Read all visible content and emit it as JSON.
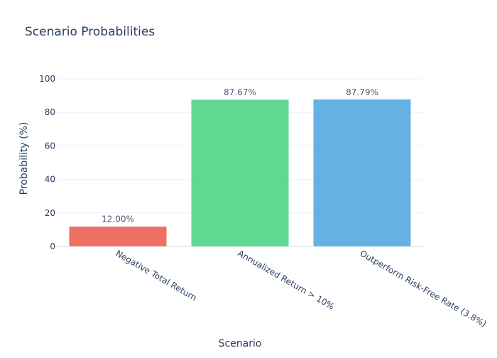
{
  "chart_data": {
    "type": "bar",
    "title": "Scenario Probabilities",
    "xlabel": "Scenario",
    "ylabel": "Probability (%)",
    "ylim": [
      0,
      100
    ],
    "yticks": [
      0,
      20,
      40,
      60,
      80,
      100
    ],
    "grid": true,
    "categories": [
      "Negative Total Return",
      "Annualized Return > 10%",
      "Outperform Risk-Free Rate (3.8%)"
    ],
    "values": [
      12.0,
      87.67,
      87.79
    ],
    "data_labels": [
      "12.00%",
      "87.67%",
      "87.79%"
    ],
    "colors": [
      "#ef6a5e",
      "#58d68d",
      "#5dade2"
    ],
    "title_color": "#2a3f5f",
    "grid_color": "#eef0f3"
  }
}
